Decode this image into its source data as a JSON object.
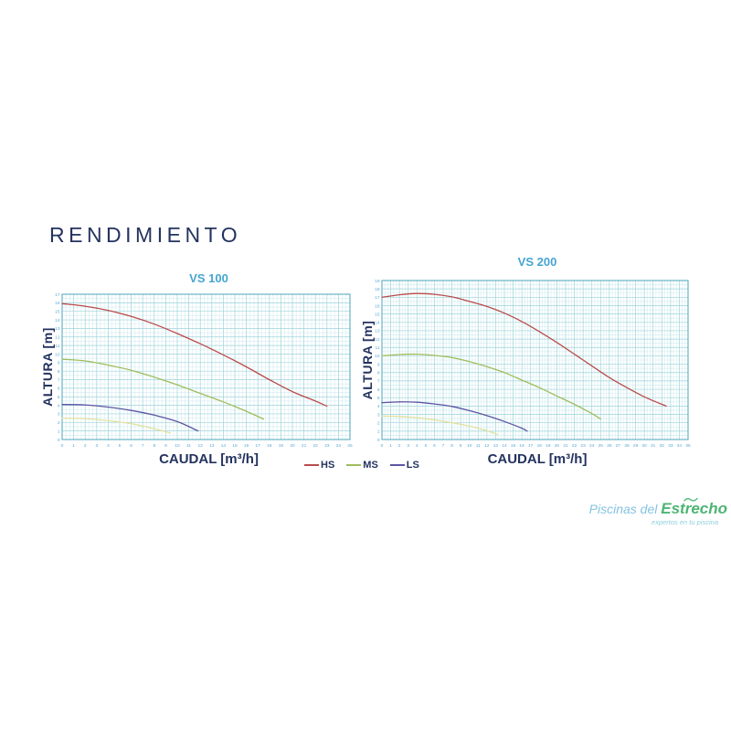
{
  "page": {
    "title": "RENDIMIENTO",
    "background": "#ffffff"
  },
  "colors": {
    "heading_navy": "#24335f",
    "chart_title_cyan": "#45a5d1",
    "tick_label_blue": "#5ba8d5",
    "grid_minor": "#d4ecef",
    "grid_major": "#9ed4dc",
    "grid_border": "#4ba4b8",
    "hs_red": "#b94c4b",
    "ms_green": "#9fbd5a",
    "ls_purple": "#5c55a3",
    "extra_yellow": "#e2e29e"
  },
  "legend": {
    "items": [
      {
        "label": "HS",
        "color": "#b94c4b"
      },
      {
        "label": "MS",
        "color": "#9fbd5a"
      },
      {
        "label": "LS",
        "color": "#5c55a3"
      }
    ]
  },
  "logo": {
    "name_part1": "Piscinas del ",
    "name_part2": "Estrecho",
    "tagline": "expertos en tu piscina"
  },
  "chart_data": [
    {
      "type": "line",
      "title": "VS 100",
      "xlabel": "CAUDAL [m³/h]",
      "ylabel": "ALTURA [m]",
      "xlim": [
        0,
        25
      ],
      "ylim": [
        0,
        17
      ],
      "x_tick_step": 1,
      "y_tick_step": 1,
      "grid": true,
      "grid_minor_x_divisions": 3,
      "grid_minor_y_divisions": 2,
      "legend_position": "below-center",
      "series": [
        {
          "name": "HS",
          "color": "#b94c4b",
          "points": [
            [
              0,
              15.9
            ],
            [
              2,
              15.6
            ],
            [
              4,
              15.1
            ],
            [
              6,
              14.4
            ],
            [
              8,
              13.5
            ],
            [
              10,
              12.4
            ],
            [
              12,
              11.2
            ],
            [
              14,
              9.9
            ],
            [
              16,
              8.5
            ],
            [
              18,
              7.0
            ],
            [
              20,
              5.6
            ],
            [
              22,
              4.5
            ],
            [
              23,
              3.9
            ]
          ]
        },
        {
          "name": "MS",
          "color": "#9fbd5a",
          "points": [
            [
              0,
              9.4
            ],
            [
              2,
              9.2
            ],
            [
              4,
              8.7
            ],
            [
              6,
              8.1
            ],
            [
              8,
              7.3
            ],
            [
              10,
              6.4
            ],
            [
              12,
              5.4
            ],
            [
              14,
              4.4
            ],
            [
              16,
              3.3
            ],
            [
              17.5,
              2.4
            ]
          ]
        },
        {
          "name": "LS",
          "color": "#5c55a3",
          "points": [
            [
              0,
              4.1
            ],
            [
              2,
              4.05
            ],
            [
              4,
              3.8
            ],
            [
              6,
              3.4
            ],
            [
              8,
              2.85
            ],
            [
              10,
              2.1
            ],
            [
              11.8,
              1.0
            ]
          ]
        },
        {
          "name": "",
          "color": "#e2e29e",
          "points": [
            [
              0,
              2.5
            ],
            [
              2,
              2.45
            ],
            [
              4,
              2.2
            ],
            [
              6,
              1.85
            ],
            [
              8,
              1.25
            ],
            [
              9.4,
              0.75
            ]
          ]
        }
      ]
    },
    {
      "type": "line",
      "title": "VS 200",
      "xlabel": "CAUDAL [m³/h]",
      "ylabel": "ALTURA [m]",
      "xlim": [
        0,
        35
      ],
      "ylim": [
        0,
        19
      ],
      "x_tick_step": 1,
      "y_tick_step": 1,
      "grid": true,
      "grid_minor_x_divisions": 3,
      "grid_minor_y_divisions": 2,
      "legend_position": "below-center",
      "series": [
        {
          "name": "HS",
          "color": "#b94c4b",
          "points": [
            [
              0,
              17.0
            ],
            [
              2,
              17.3
            ],
            [
              4,
              17.45
            ],
            [
              6,
              17.35
            ],
            [
              8,
              17.05
            ],
            [
              10,
              16.5
            ],
            [
              12,
              15.9
            ],
            [
              14,
              15.1
            ],
            [
              16,
              14.1
            ],
            [
              18,
              12.9
            ],
            [
              20,
              11.6
            ],
            [
              22,
              10.2
            ],
            [
              24,
              8.8
            ],
            [
              26,
              7.4
            ],
            [
              28,
              6.2
            ],
            [
              30,
              5.1
            ],
            [
              32.5,
              4.0
            ]
          ]
        },
        {
          "name": "MS",
          "color": "#9fbd5a",
          "points": [
            [
              0,
              10.0
            ],
            [
              2,
              10.15
            ],
            [
              4,
              10.2
            ],
            [
              6,
              10.05
            ],
            [
              8,
              9.8
            ],
            [
              10,
              9.3
            ],
            [
              12,
              8.7
            ],
            [
              14,
              8.0
            ],
            [
              16,
              7.1
            ],
            [
              18,
              6.2
            ],
            [
              20,
              5.2
            ],
            [
              22,
              4.2
            ],
            [
              24,
              3.1
            ],
            [
              25,
              2.45
            ]
          ]
        },
        {
          "name": "LS",
          "color": "#5c55a3",
          "points": [
            [
              0,
              4.4
            ],
            [
              2,
              4.5
            ],
            [
              4,
              4.45
            ],
            [
              6,
              4.25
            ],
            [
              8,
              3.95
            ],
            [
              10,
              3.45
            ],
            [
              12,
              2.85
            ],
            [
              14,
              2.15
            ],
            [
              16,
              1.35
            ],
            [
              16.6,
              1.0
            ]
          ]
        },
        {
          "name": "",
          "color": "#e2e29e",
          "points": [
            [
              0,
              2.8
            ],
            [
              2,
              2.75
            ],
            [
              4,
              2.6
            ],
            [
              6,
              2.35
            ],
            [
              8,
              2.0
            ],
            [
              10,
              1.6
            ],
            [
              12,
              1.05
            ],
            [
              13.2,
              0.6
            ]
          ]
        }
      ]
    }
  ]
}
